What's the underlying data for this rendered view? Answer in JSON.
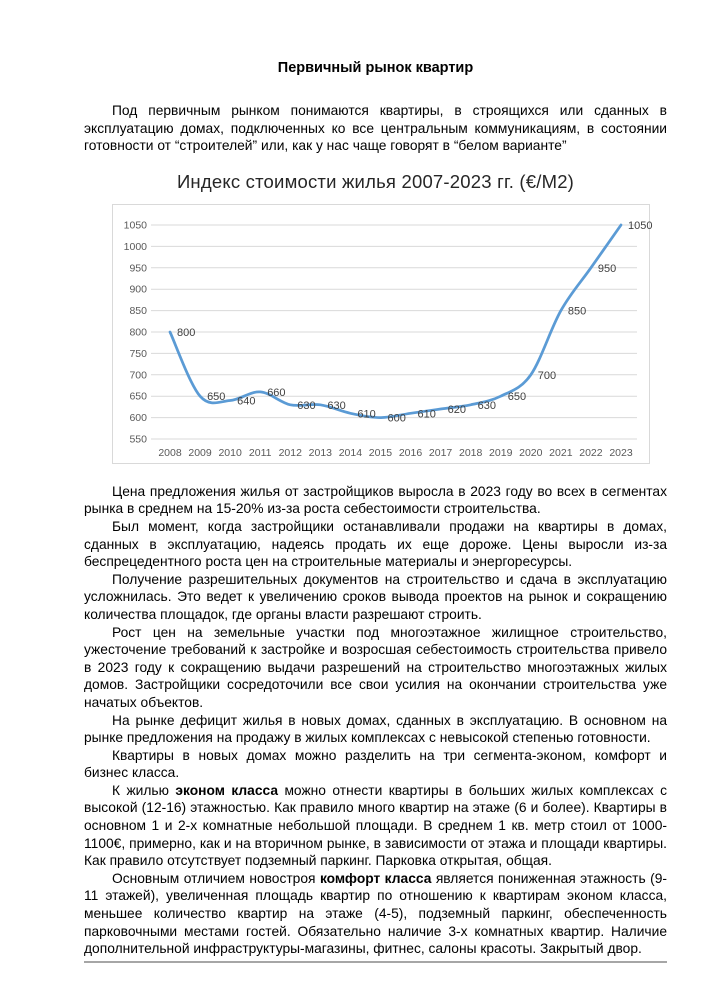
{
  "document": {
    "title": "Первичный рынок квартир"
  },
  "intro_paragraphs": [
    {
      "runs": [
        {
          "t": "Под первичным рынком понимаются квартиры, в строящихся или сданных в эксплуатацию домах, подключенных ко все центральным коммуникациям, в состоянии готовности от “строителей” или, как у нас чаще говорят в “белом варианте”"
        }
      ]
    }
  ],
  "chart_data": {
    "type": "line",
    "title": "Индекс стоимости жилья 2007-2023 гг. (€/М2)",
    "categories": [
      "2008",
      "2009",
      "2010",
      "2011",
      "2012",
      "2013",
      "2014",
      "2015",
      "2016",
      "2017",
      "2018",
      "2019",
      "2020",
      "2021",
      "2022",
      "2023"
    ],
    "values": [
      800,
      650,
      640,
      660,
      630,
      630,
      610,
      600,
      610,
      620,
      630,
      650,
      700,
      850,
      950,
      1050
    ],
    "xlabel": "",
    "ylabel": "",
    "ylim": [
      550,
      1050
    ],
    "ytick_step": 50,
    "grid": true,
    "legend": "none",
    "smooth": true,
    "data_labels": "right",
    "colors": {
      "line": "#5B9BD5",
      "gridline": "#D9D9D9",
      "tick_label": "#595959",
      "data_label": "#404040",
      "border": "#D9D9D9"
    }
  },
  "body_paragraphs": [
    {
      "runs": [
        {
          "t": "Цена предложения жилья от застройщиков выросла в 2023 году во всех в сегментах рынка в среднем на 15-20% из-за роста себестоимости строительства."
        }
      ]
    },
    {
      "runs": [
        {
          "t": "Был момент, когда застройщики останавливали продажи на квартиры в домах, сданных в эксплуатацию, надеясь продать их еще дороже. Цены выросли из-за беспрецедентного роста цен на строительные материалы и энергоресурсы."
        }
      ]
    },
    {
      "runs": [
        {
          "t": "Получение разрешительных документов на строительство и сдача в эксплуатацию усложнилась. Это ведет к увеличению сроков вывода проектов на рынок и сокращению количества площадок, где органы власти разрешают строить."
        }
      ]
    },
    {
      "runs": [
        {
          "t": "Рост цен на земельные участки под многоэтажное жилищное строительство, ужесточение требований к застройке и возросшая себестоимость строительства привело в 2023 году к сокращению выдачи разрешений на строительство многоэтажных жилых домов. Застройщики сосредоточили все свои усилия на окончании строительства уже начатых объектов."
        }
      ]
    },
    {
      "runs": [
        {
          "t": "На рынке дефицит жилья в новых домах, сданных в эксплуатацию. В основном на рынке предложения на продажу в жилых комплексах с невысокой степенью готовности."
        }
      ]
    },
    {
      "runs": [
        {
          "t": "Квартиры в новых домах можно разделить на три сегмента-эконом, комфорт и бизнес класса."
        }
      ]
    },
    {
      "runs": [
        {
          "t": "К жилью "
        },
        {
          "t": "эконом класса",
          "b": true
        },
        {
          "t": " можно отнести квартиры в больших жилых комплексах с высокой (12-16) этажностью. Как правило много квартир на этаже (6 и более). Квартиры в основном 1 и 2-х комнатные небольшой площади. В среднем 1 кв.  метр стоил от 1000-1100€, примерно, как и на вторичном рынке, в зависимости от этажа и площади квартиры. Как правило отсутствует подземный паркинг. Парковка открытая, общая."
        }
      ]
    },
    {
      "runs": [
        {
          "t": "Основным отличием новостроя "
        },
        {
          "t": "комфорт класса",
          "b": true
        },
        {
          "t": " является пониженная этажность (9-11 этажей), увеличенная площадь квартир по отношению к квартирам эконом класса, меньшее количество квартир на этаже (4-5), подземный паркинг, обеспеченность парковочными местами гостей. Обязательно наличие 3-х комнатных квартир. Наличие дополнительной инфраструктуры-магазины, фитнес, салоны красоты. Закрытый двор."
        }
      ]
    }
  ]
}
